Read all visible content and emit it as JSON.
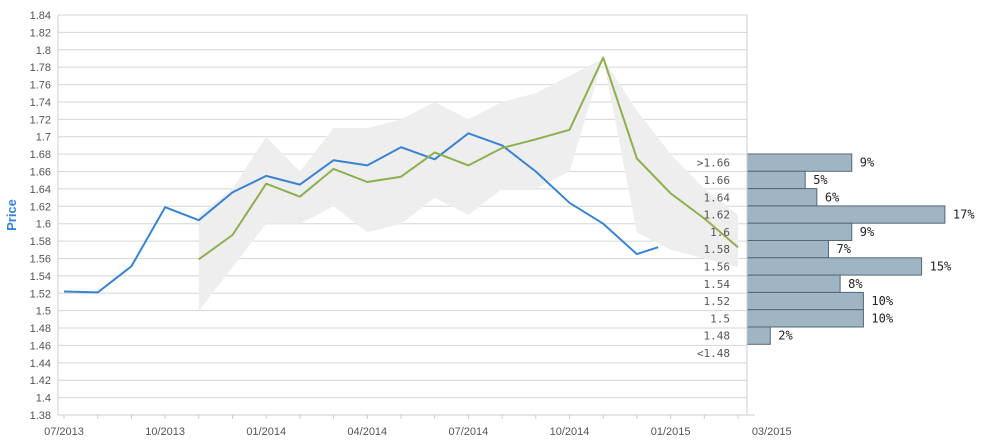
{
  "chart_data": {
    "type": "line",
    "ylabel": "Price",
    "xlabel": "",
    "ylim": [
      1.38,
      1.84
    ],
    "y_ticks": [
      "1.38",
      "1.4",
      "1.42",
      "1.44",
      "1.46",
      "1.48",
      "1.5",
      "1.52",
      "1.54",
      "1.56",
      "1.58",
      "1.6",
      "1.62",
      "1.64",
      "1.66",
      "1.68",
      "1.7",
      "1.72",
      "1.74",
      "1.76",
      "1.78",
      "1.8",
      "1.82",
      "1.84"
    ],
    "x_ticks": [
      "07/2013",
      "10/2013",
      "01/2014",
      "04/2014",
      "07/2014",
      "10/2014",
      "01/2015",
      "03/2015"
    ],
    "grid": true,
    "series": [
      {
        "color": "#3a83d0",
        "x": [
          "2013-07",
          "2013-08",
          "2013-09",
          "2013-10",
          "2013-11",
          "2013-12",
          "2014-01",
          "2014-02",
          "2014-03",
          "2014-04",
          "2014-05",
          "2014-06",
          "2014-07",
          "2014-08",
          "2014-09",
          "2014-10",
          "2014-11",
          "2014-12",
          "2014-12-20"
        ],
        "values": [
          1.522,
          1.521,
          1.551,
          1.619,
          1.604,
          1.636,
          1.655,
          1.645,
          1.673,
          1.667,
          1.688,
          1.674,
          1.704,
          1.69,
          1.66,
          1.624,
          1.6,
          1.565,
          1.573
        ]
      },
      {
        "color": "#8db04e",
        "x": [
          "2013-11",
          "2013-12",
          "2014-01",
          "2014-02",
          "2014-03",
          "2014-04",
          "2014-05",
          "2014-06",
          "2014-07",
          "2014-08",
          "2014-09",
          "2014-10",
          "2014-11",
          "2014-12",
          "2015-01",
          "2015-02",
          "2015-03"
        ],
        "values": [
          1.559,
          1.587,
          1.646,
          1.631,
          1.663,
          1.648,
          1.654,
          1.682,
          1.667,
          1.687,
          1.697,
          1.708,
          1.791,
          1.675,
          1.635,
          1.606,
          1.573
        ]
      }
    ],
    "band": {
      "color": "#eeeeee",
      "x": [
        "2013-11",
        "2013-12",
        "2014-01",
        "2014-02",
        "2014-03",
        "2014-04",
        "2014-05",
        "2014-06",
        "2014-07",
        "2014-08",
        "2014-09",
        "2014-10",
        "2014-11",
        "2014-12",
        "2015-01",
        "2015-02",
        "2015-03"
      ],
      "upper": [
        1.61,
        1.64,
        1.7,
        1.66,
        1.71,
        1.71,
        1.72,
        1.74,
        1.72,
        1.74,
        1.75,
        1.77,
        1.79,
        1.73,
        1.68,
        1.64,
        1.61
      ],
      "lower": [
        1.5,
        1.55,
        1.6,
        1.6,
        1.62,
        1.59,
        1.6,
        1.63,
        1.61,
        1.64,
        1.64,
        1.66,
        1.79,
        1.59,
        1.57,
        1.56,
        1.55
      ]
    },
    "distribution": {
      "color": "#a0b5c4",
      "buckets": [
        {
          "label": ">1.66",
          "pct": "9%",
          "value": 9
        },
        {
          "label": "1.66",
          "pct": "5%",
          "value": 5
        },
        {
          "label": "1.64",
          "pct": "6%",
          "value": 6
        },
        {
          "label": "1.62",
          "pct": "17%",
          "value": 17
        },
        {
          "label": "1.6",
          "pct": "9%",
          "value": 9
        },
        {
          "label": "1.58",
          "pct": "7%",
          "value": 7
        },
        {
          "label": "1.56",
          "pct": "15%",
          "value": 15
        },
        {
          "label": "1.54",
          "pct": "8%",
          "value": 8
        },
        {
          "label": "1.52",
          "pct": "10%",
          "value": 10
        },
        {
          "label": "1.5",
          "pct": "10%",
          "value": 10
        },
        {
          "label": "1.48",
          "pct": "2%",
          "value": 2
        },
        {
          "label": "<1.48",
          "pct": "",
          "value": 0
        }
      ]
    }
  }
}
